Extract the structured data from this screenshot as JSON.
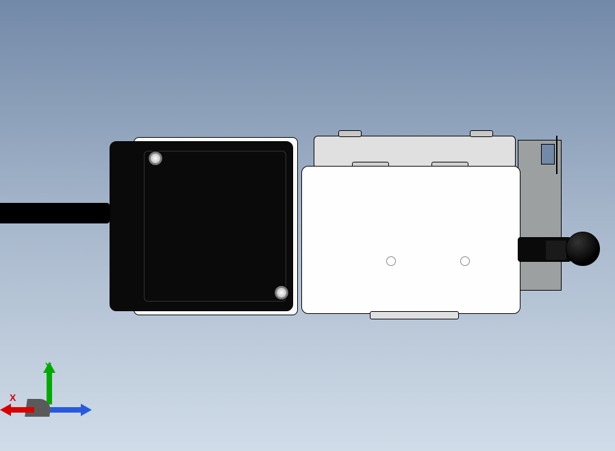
{
  "viewport": {
    "background_gradient_top": "#7289a8",
    "background_gradient_mid": "#a8b8cc",
    "background_gradient_bottom": "#d0dce8"
  },
  "model": {
    "type": "mechanical-assembly",
    "components": {
      "cable": {
        "color": "#000000"
      },
      "connector_housing": {
        "color": "#f8f8f8",
        "border": "#000000"
      },
      "connector_cover": {
        "color": "#0a0a0a"
      },
      "screws": {
        "color_outer": "#888888",
        "color_inner": "#cccccc",
        "count": 2
      },
      "main_body": {
        "color": "#fefefe",
        "border": "#000000",
        "holes": 2
      },
      "backplate": {
        "color": "#e0e0e0"
      },
      "bracket": {
        "color": "#9ca0a0"
      },
      "knob": {
        "color": "#000000",
        "ball_highlight": "#333333"
      }
    }
  },
  "triad": {
    "axes": {
      "x": {
        "label": "X",
        "color": "#d90000"
      },
      "y": {
        "label": "Y",
        "color": "#00aa00"
      },
      "z": {
        "label": "",
        "color": "#2a5adc"
      }
    },
    "origin_color": "#5a5a5a"
  }
}
